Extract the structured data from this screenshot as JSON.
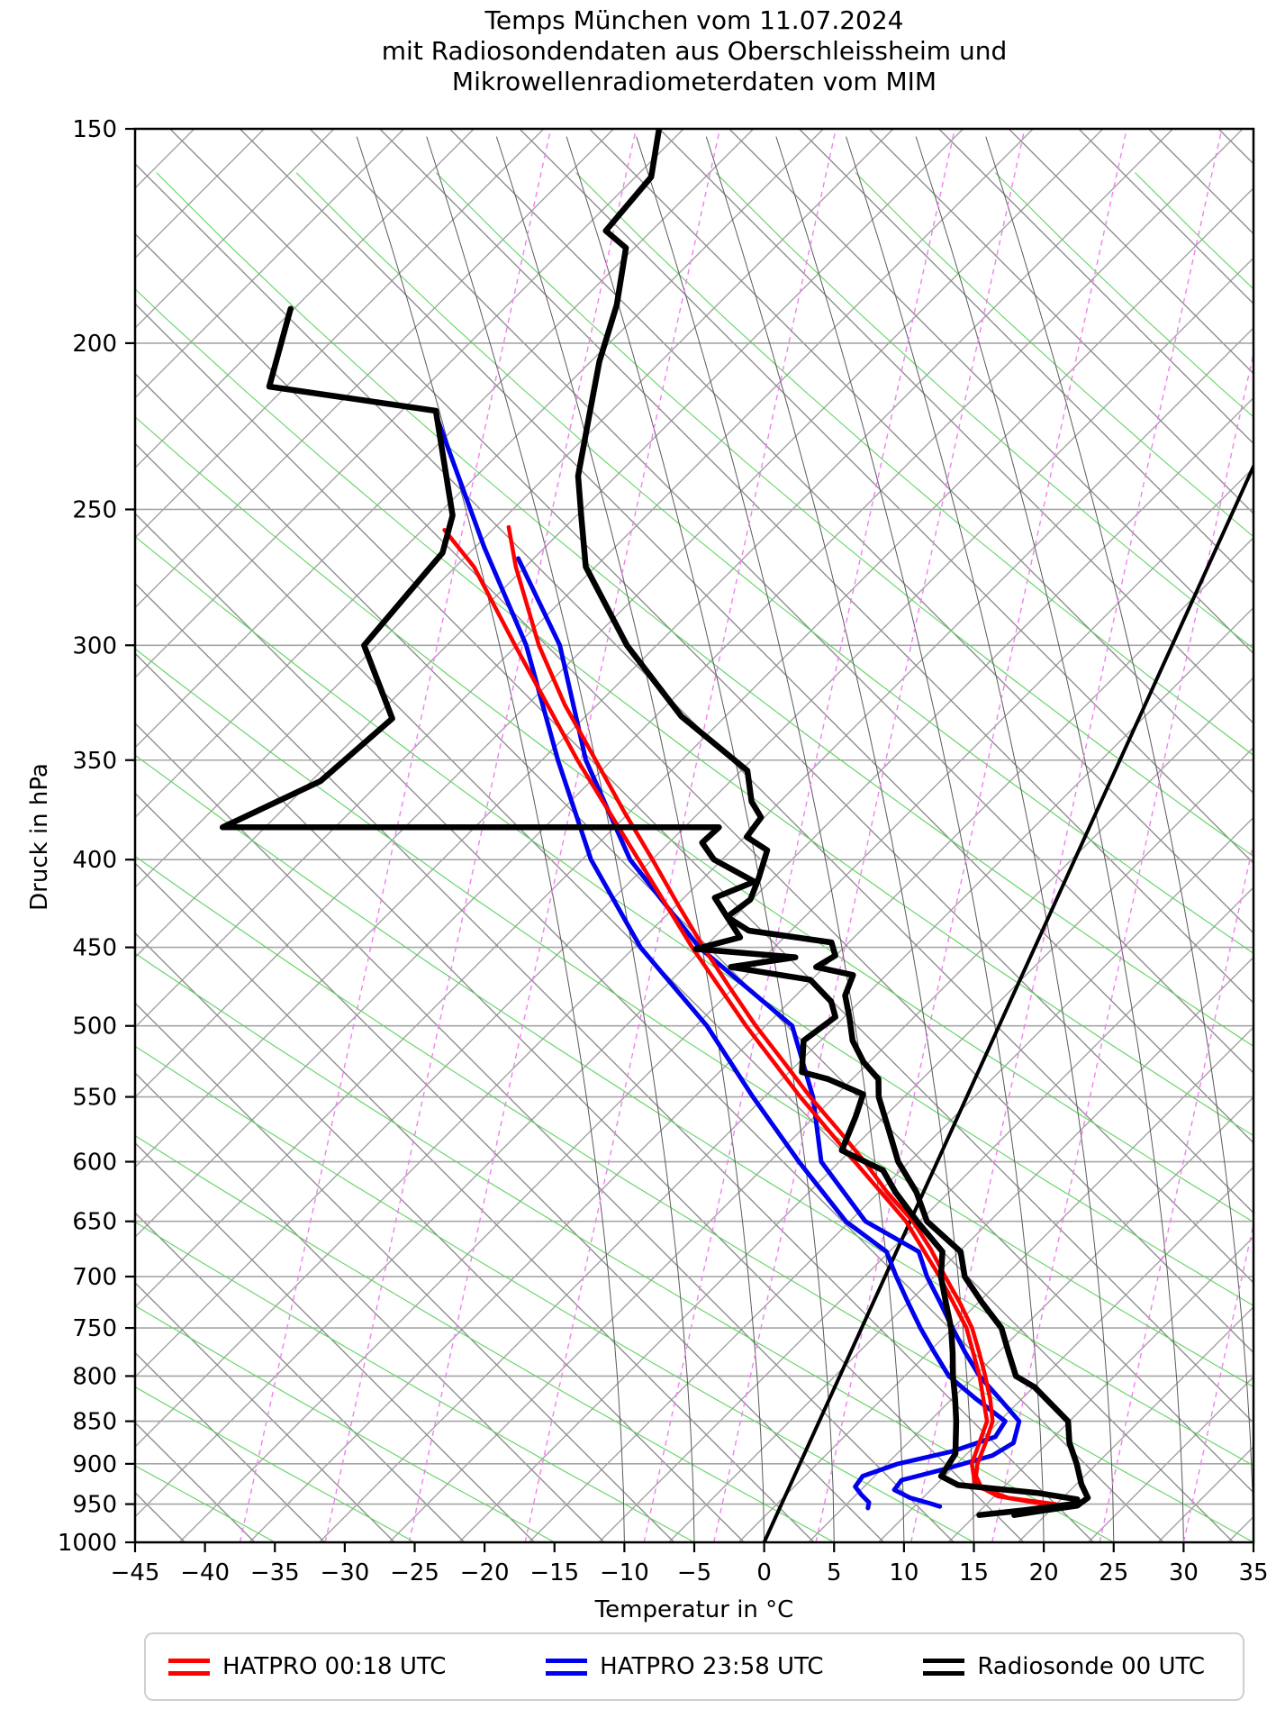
{
  "title": {
    "line1": "Temps München vom 11.07.2024",
    "line2": "mit Radiosondendaten aus Oberschleissheim und",
    "line3": "Mikrowellenradiometerdaten vom MIM"
  },
  "axes": {
    "x_label": "Temperatur in °C",
    "y_label": "Druck in hPa",
    "pressure_ticks": [
      150,
      200,
      250,
      300,
      350,
      400,
      450,
      500,
      550,
      600,
      650,
      700,
      750,
      800,
      850,
      900,
      950,
      1000
    ],
    "temperature_ticks": [
      -45,
      -40,
      -35,
      -30,
      -25,
      -20,
      -15,
      -10,
      -5,
      0,
      5,
      10,
      15,
      20,
      25,
      30,
      35
    ],
    "pressure_range_hpa": [
      150,
      1000
    ],
    "temperature_range_c": [
      -45,
      35
    ],
    "pressure_scale": "log"
  },
  "legend": [
    {
      "label": "HATPRO 00:18 UTC",
      "color": "#ff0000"
    },
    {
      "label": "HATPRO 23:58 UTC",
      "color": "#0000ee"
    },
    {
      "label": "Radiosonde 00 UTC",
      "color": "#000000"
    }
  ],
  "colors": {
    "isotherm_grid": "#a3a3a3",
    "diagonal_grid": "#8f8f8f",
    "isobar_grid": "#a6a6a6",
    "moist_adiabat_green": "#5fd35f",
    "moist_adiabat_dark": "#5a5a5a",
    "mixing_ratio": "#ee82ee",
    "zero_isotherm": "#000000",
    "hatpro_0018": "#ff0000",
    "hatpro_2358": "#0000ee",
    "radiosonde": "#000000"
  },
  "chart_data": {
    "type": "line",
    "diagram": "skew-T log-p Temp",
    "title": "Temps München vom 11.07.2024 mit Radiosondendaten aus Oberschleissheim und Mikrowellenradiometerdaten vom MIM",
    "xlabel": "Temperatur in °C",
    "ylabel": "Druck in hPa",
    "xlim": [
      -45,
      35
    ],
    "ylim": [
      1000,
      150
    ],
    "layout": {
      "isotherm_slope_dx_per_dy": 0.455,
      "grid_on": true,
      "legend_position": "bottom"
    },
    "background": {
      "isobars_hpa": [
        150,
        200,
        250,
        300,
        350,
        400,
        450,
        500,
        550,
        600,
        650,
        700,
        750,
        800,
        850,
        900,
        950,
        1000
      ],
      "isotherm_grid_step_c": 5,
      "mixing_ratio_g_per_kg": [
        0.1,
        0.2,
        0.4,
        1,
        2,
        3,
        5,
        8,
        12,
        20,
        30
      ],
      "mixing_ratio_bottom_temps_c": [
        -37.5,
        -31.4,
        -25.4,
        -17.1,
        -8.6,
        -3.6,
        3.7,
        10.5,
        16.3,
        24.0,
        30.0
      ],
      "moist_adiabat_thetaw_c": [
        -10,
        -5,
        0,
        5,
        10,
        15,
        20,
        25,
        30,
        35
      ],
      "zero_isotherm_c": 0
    },
    "series": [
      {
        "name": "HATPRO 00:18 UTC Temperatur",
        "color": "#ff0000",
        "width": 4.5,
        "points_p_t": [
          [
            256,
            -51.3
          ],
          [
            270,
            -49.5
          ],
          [
            300,
            -45.3
          ],
          [
            325,
            -41.5
          ],
          [
            350,
            -37.5
          ],
          [
            375,
            -33.8
          ],
          [
            400,
            -30.2
          ],
          [
            425,
            -26.9
          ],
          [
            450,
            -23.7
          ],
          [
            475,
            -20.5
          ],
          [
            500,
            -17.4
          ],
          [
            525,
            -14.2
          ],
          [
            550,
            -11.2
          ],
          [
            575,
            -8.1
          ],
          [
            600,
            -5.2
          ],
          [
            625,
            -2.6
          ],
          [
            650,
            0.2
          ],
          [
            675,
            2.4
          ],
          [
            700,
            4.3
          ],
          [
            725,
            6.2
          ],
          [
            750,
            7.9
          ],
          [
            775,
            9.2
          ],
          [
            800,
            10.4
          ],
          [
            825,
            11.5
          ],
          [
            850,
            12.4
          ],
          [
            875,
            12.6
          ],
          [
            900,
            12.7
          ],
          [
            915,
            13.0
          ],
          [
            930,
            13.8
          ],
          [
            942,
            16.0
          ],
          [
            950,
            19.6
          ]
        ]
      },
      {
        "name": "HATPRO 00:18 UTC Taupunkt",
        "color": "#ff0000",
        "width": 4.5,
        "points_p_t": [
          [
            257,
            -55.8
          ],
          [
            270,
            -52.5
          ],
          [
            300,
            -47.0
          ],
          [
            350,
            -38.8
          ],
          [
            400,
            -31.2
          ],
          [
            450,
            -24.5
          ],
          [
            500,
            -18.1
          ],
          [
            550,
            -11.9
          ],
          [
            600,
            -5.9
          ],
          [
            650,
            -0.3
          ],
          [
            700,
            3.9
          ],
          [
            750,
            7.5
          ],
          [
            800,
            10.0
          ],
          [
            850,
            12.0
          ],
          [
            900,
            12.3
          ],
          [
            925,
            13.2
          ],
          [
            940,
            15.2
          ],
          [
            950,
            18.8
          ]
        ]
      },
      {
        "name": "HATPRO 23:58 UTC Temperatur",
        "color": "#0000ee",
        "width": 5,
        "points_p_t": [
          [
            267,
            -49.6
          ],
          [
            300,
            -43.8
          ],
          [
            350,
            -38.2
          ],
          [
            400,
            -31.8
          ],
          [
            450,
            -24.0
          ],
          [
            500,
            -14.8
          ],
          [
            550,
            -11.0
          ],
          [
            600,
            -8.3
          ],
          [
            650,
            -3.2
          ],
          [
            677,
            1.6
          ],
          [
            700,
            3.0
          ],
          [
            725,
            4.8
          ],
          [
            750,
            6.5
          ],
          [
            775,
            8.2
          ],
          [
            800,
            10.0
          ],
          [
            825,
            12.2
          ],
          [
            850,
            14.3
          ],
          [
            875,
            14.6
          ],
          [
            890,
            13.5
          ],
          [
            905,
            10.8
          ],
          [
            920,
            7.8
          ],
          [
            932,
            7.6
          ],
          [
            942,
            9.0
          ],
          [
            950,
            10.8
          ],
          [
            953,
            11.4
          ]
        ]
      },
      {
        "name": "HATPRO 23:58 UTC Taupunkt",
        "color": "#0000ee",
        "width": 5,
        "points_p_t": [
          [
            222,
            -59.8
          ],
          [
            263,
            -52.4
          ],
          [
            300,
            -46.2
          ],
          [
            350,
            -40.2
          ],
          [
            400,
            -34.6
          ],
          [
            450,
            -28.2
          ],
          [
            500,
            -20.9
          ],
          [
            550,
            -15.3
          ],
          [
            600,
            -9.9
          ],
          [
            650,
            -4.6
          ],
          [
            677,
            -0.7
          ],
          [
            700,
            0.8
          ],
          [
            725,
            2.5
          ],
          [
            750,
            4.2
          ],
          [
            775,
            6.0
          ],
          [
            800,
            7.8
          ],
          [
            825,
            10.5
          ],
          [
            850,
            13.3
          ],
          [
            868,
            13.1
          ],
          [
            885,
            10.5
          ],
          [
            900,
            7.0
          ],
          [
            915,
            4.9
          ],
          [
            928,
            4.7
          ],
          [
            938,
            5.4
          ],
          [
            948,
            6.2
          ],
          [
            955,
            6.3
          ]
        ]
      },
      {
        "name": "Radiosonde 00 UTC Temperatur",
        "color": "#000000",
        "width": 6.5,
        "points_p_t": [
          [
            150,
            -53.5
          ],
          [
            160,
            -52.5
          ],
          [
            172,
            -54.0
          ],
          [
            176,
            -52.0
          ],
          [
            190,
            -50.8
          ],
          [
            205,
            -50.2
          ],
          [
            220,
            -49.2
          ],
          [
            239,
            -48.0
          ],
          [
            252,
            -46.5
          ],
          [
            270,
            -44.5
          ],
          [
            300,
            -39.0
          ],
          [
            330,
            -32.8
          ],
          [
            355,
            -26.3
          ],
          [
            370,
            -25.0
          ],
          [
            378,
            -23.8
          ],
          [
            388,
            -24.2
          ],
          [
            395,
            -22.3
          ],
          [
            410,
            -22.0
          ],
          [
            422,
            -21.9
          ],
          [
            432,
            -23.0
          ],
          [
            440,
            -21.0
          ],
          [
            447,
            -14.7
          ],
          [
            455,
            -14.0
          ],
          [
            462,
            -15.0
          ],
          [
            467,
            -12.1
          ],
          [
            480,
            -12.0
          ],
          [
            494,
            -11.0
          ],
          [
            510,
            -10.0
          ],
          [
            525,
            -8.5
          ],
          [
            537,
            -6.9
          ],
          [
            550,
            -6.3
          ],
          [
            575,
            -4.5
          ],
          [
            600,
            -2.8
          ],
          [
            625,
            -0.5
          ],
          [
            650,
            1.2
          ],
          [
            677,
            4.6
          ],
          [
            700,
            5.7
          ],
          [
            725,
            7.8
          ],
          [
            750,
            10.0
          ],
          [
            775,
            11.3
          ],
          [
            800,
            12.6
          ],
          [
            812,
            14.3
          ],
          [
            850,
            17.8
          ],
          [
            875,
            18.6
          ],
          [
            900,
            19.8
          ],
          [
            925,
            20.8
          ],
          [
            942,
            21.7
          ],
          [
            952,
            21.2
          ],
          [
            958,
            19.0
          ],
          [
            964,
            17.0
          ]
        ]
      },
      {
        "name": "Radiosonde 00 UTC Taupunkt",
        "color": "#000000",
        "width": 6.5,
        "points_p_t": [
          [
            191,
            -74.0
          ],
          [
            212,
            -73.0
          ],
          [
            219,
            -60.3
          ],
          [
            252,
            -55.7
          ],
          [
            265,
            -55.2
          ],
          [
            300,
            -57.8
          ],
          [
            331,
            -53.4
          ],
          [
            360,
            -56.5
          ],
          [
            383,
            -62.0
          ],
          [
            383,
            -26.5
          ],
          [
            391,
            -27.2
          ],
          [
            400,
            -25.8
          ],
          [
            412,
            -22.2
          ],
          [
            421,
            -24.5
          ],
          [
            444,
            -21.4
          ],
          [
            451,
            -24.2
          ],
          [
            456,
            -16.8
          ],
          [
            462,
            -21.1
          ],
          [
            470,
            -15.0
          ],
          [
            484,
            -12.8
          ],
          [
            494,
            -12.0
          ],
          [
            510,
            -13.5
          ],
          [
            532,
            -12.6
          ],
          [
            537,
            -10.5
          ],
          [
            548,
            -7.5
          ],
          [
            565,
            -7.3
          ],
          [
            591,
            -7.2
          ],
          [
            607,
            -3.6
          ],
          [
            625,
            -2.0
          ],
          [
            650,
            0.5
          ],
          [
            677,
            3.3
          ],
          [
            700,
            4.0
          ],
          [
            725,
            5.2
          ],
          [
            750,
            6.4
          ],
          [
            775,
            7.3
          ],
          [
            800,
            8.1
          ],
          [
            825,
            9.0
          ],
          [
            850,
            9.8
          ],
          [
            888,
            10.8
          ],
          [
            915,
            10.5
          ],
          [
            926,
            12.0
          ],
          [
            936,
            18.0
          ],
          [
            944,
            21.0
          ],
          [
            950,
            20.8
          ],
          [
            958,
            17.5
          ],
          [
            964,
            14.5
          ]
        ]
      }
    ]
  }
}
